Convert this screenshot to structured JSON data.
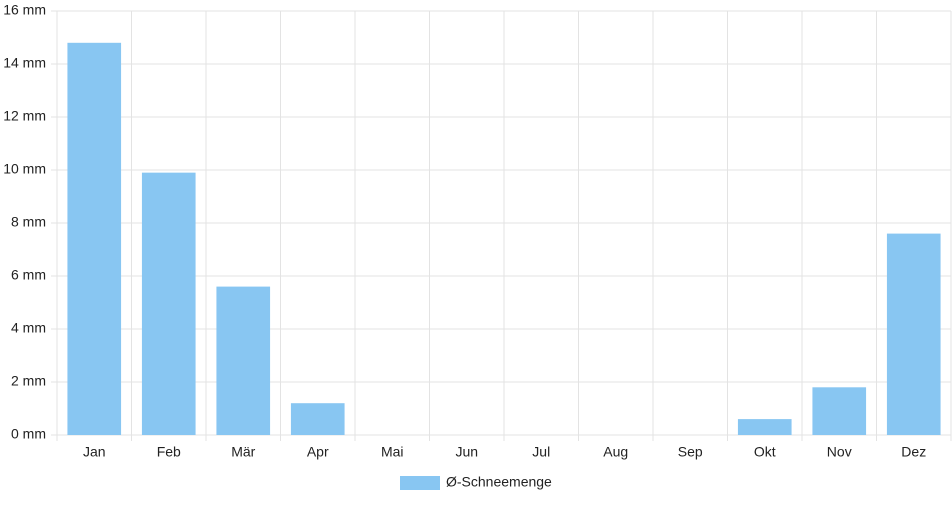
{
  "chart_data": {
    "type": "bar",
    "categories": [
      "Jan",
      "Feb",
      "Mär",
      "Apr",
      "Mai",
      "Jun",
      "Jul",
      "Aug",
      "Sep",
      "Okt",
      "Nov",
      "Dez"
    ],
    "series": [
      {
        "name": "Ø-Schneemenge",
        "color": "#88c6f2",
        "values": [
          14.8,
          9.9,
          5.6,
          1.2,
          0,
          0,
          0,
          0,
          0,
          0.6,
          1.8,
          7.6
        ]
      }
    ],
    "ylim": [
      0,
      16
    ],
    "yticks": [
      {
        "value": 0,
        "label": "0 mm"
      },
      {
        "value": 2,
        "label": "2 mm"
      },
      {
        "value": 4,
        "label": "4 mm"
      },
      {
        "value": 6,
        "label": "6 mm"
      },
      {
        "value": 8,
        "label": "8 mm"
      },
      {
        "value": 10,
        "label": "10 mm"
      },
      {
        "value": 12,
        "label": "12 mm"
      },
      {
        "value": 14,
        "label": "14 mm"
      },
      {
        "value": 16,
        "label": "16 mm"
      }
    ],
    "grid": true,
    "legend": "bottom"
  }
}
